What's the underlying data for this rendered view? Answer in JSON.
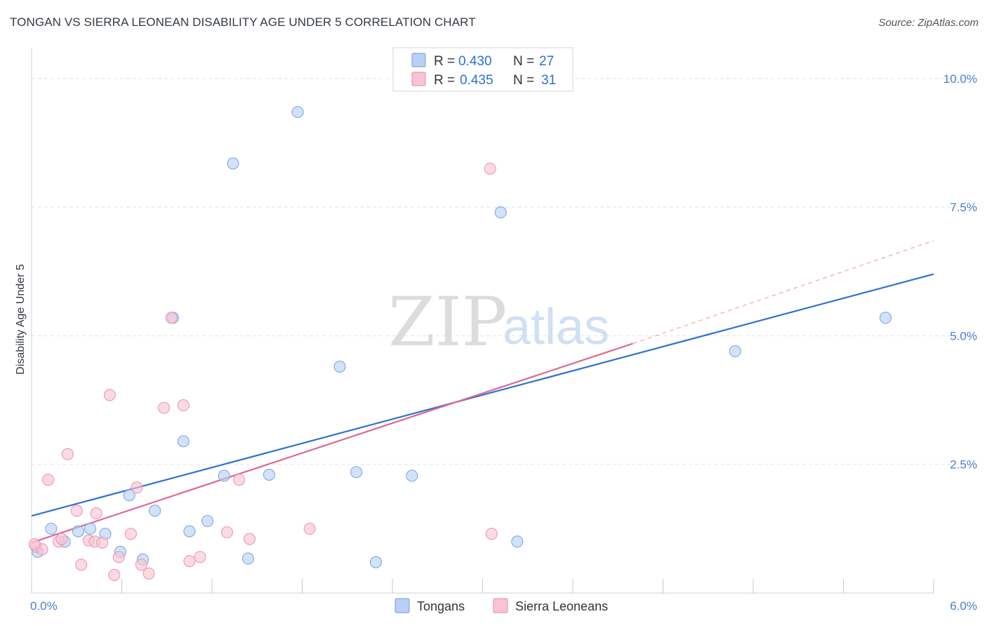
{
  "title": "TONGAN VS SIERRA LEONEAN DISABILITY AGE UNDER 5 CORRELATION CHART",
  "source": "Source: ZipAtlas.com",
  "colors": {
    "tongan_fill": "#b7d0f3",
    "tongan_stroke": "#7fa9e0",
    "tongan_line": "#2e72d2",
    "sierra_fill": "#f8c3d4",
    "sierra_stroke": "#ec97b3",
    "sierra_line": "#e06694",
    "grid": "#e3e3e3",
    "axis_text": "#4a7fd0"
  },
  "legend": {
    "rows": [
      {
        "r_label": "R =",
        "r_value": "0.430",
        "n_label": "N =",
        "n_value": "27"
      },
      {
        "r_label": "R =",
        "r_value": "0.435",
        "n_label": "N =",
        "n_value": "31"
      }
    ]
  },
  "watermark": {
    "zip": "ZIP",
    "atlas": "atlas"
  },
  "chart_data": {
    "type": "scatter",
    "title": "TONGAN VS SIERRA LEONEAN DISABILITY AGE UNDER 5 CORRELATION CHART",
    "xlabel": "",
    "ylabel": "Disability Age Under 5",
    "xlim": [
      0,
      6.0
    ],
    "ylim": [
      0,
      10.6
    ],
    "x_tick_labels": [
      "0.0%",
      "6.0%"
    ],
    "y_ticks": [
      2.5,
      5.0,
      7.5,
      10.0
    ],
    "y_tick_labels": [
      "2.5%",
      "5.0%",
      "7.5%",
      "10.0%"
    ],
    "grid": true,
    "series": [
      {
        "name": "Tongans",
        "points": [
          [
            0.04,
            0.8
          ],
          [
            0.13,
            1.25
          ],
          [
            0.22,
            1.0
          ],
          [
            0.31,
            1.2
          ],
          [
            0.39,
            1.25
          ],
          [
            0.49,
            1.15
          ],
          [
            0.59,
            0.8
          ],
          [
            0.65,
            1.9
          ],
          [
            0.74,
            0.65
          ],
          [
            0.82,
            1.6
          ],
          [
            0.94,
            5.35
          ],
          [
            1.01,
            2.95
          ],
          [
            1.05,
            1.2
          ],
          [
            1.17,
            1.4
          ],
          [
            1.28,
            2.28
          ],
          [
            1.34,
            8.35
          ],
          [
            1.44,
            0.67
          ],
          [
            1.58,
            2.3
          ],
          [
            1.77,
            9.35
          ],
          [
            2.05,
            4.4
          ],
          [
            2.16,
            2.35
          ],
          [
            2.29,
            0.6
          ],
          [
            2.53,
            2.28
          ],
          [
            3.12,
            7.4
          ],
          [
            3.23,
            1.0
          ],
          [
            4.68,
            4.7
          ],
          [
            5.68,
            5.35
          ]
        ],
        "trend": {
          "x": [
            0.0,
            6.0
          ],
          "y": [
            1.5,
            6.2
          ],
          "style": "solid"
        }
      },
      {
        "name": "Sierra Leoneans",
        "points": [
          [
            0.03,
            0.9
          ],
          [
            0.07,
            0.85
          ],
          [
            0.11,
            2.2
          ],
          [
            0.18,
            1.0
          ],
          [
            0.2,
            1.05
          ],
          [
            0.24,
            2.7
          ],
          [
            0.3,
            1.6
          ],
          [
            0.33,
            0.55
          ],
          [
            0.38,
            1.02
          ],
          [
            0.42,
            1.0
          ],
          [
            0.43,
            1.55
          ],
          [
            0.47,
            0.98
          ],
          [
            0.52,
            3.85
          ],
          [
            0.55,
            0.35
          ],
          [
            0.58,
            0.7
          ],
          [
            0.66,
            1.15
          ],
          [
            0.7,
            2.05
          ],
          [
            0.73,
            0.55
          ],
          [
            0.78,
            0.38
          ],
          [
            0.88,
            3.6
          ],
          [
            0.93,
            5.35
          ],
          [
            1.01,
            3.65
          ],
          [
            1.05,
            0.62
          ],
          [
            1.12,
            0.7
          ],
          [
            1.3,
            1.18
          ],
          [
            1.38,
            2.2
          ],
          [
            1.45,
            1.05
          ],
          [
            1.85,
            1.25
          ],
          [
            3.05,
            8.25
          ],
          [
            3.06,
            1.15
          ],
          [
            0.02,
            0.95
          ]
        ],
        "trend": {
          "x": [
            0.0,
            4.0
          ],
          "y": [
            0.98,
            4.85
          ],
          "style": "solid"
        },
        "trend_extension": {
          "x": [
            4.0,
            6.0
          ],
          "y": [
            4.85,
            6.85
          ],
          "style": "dashed"
        }
      }
    ]
  }
}
